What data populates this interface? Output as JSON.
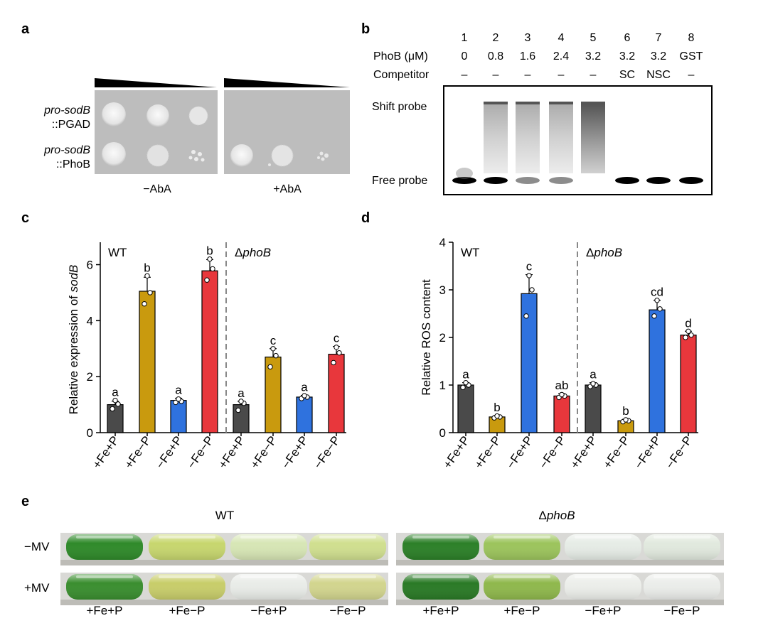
{
  "panel_labels": {
    "a": "a",
    "b": "b",
    "c": "c",
    "d": "d",
    "e": "e"
  },
  "panel_a": {
    "row_labels": [
      {
        "line1": "pro-sodB",
        "line2": "::PGAD"
      },
      {
        "line1": "pro-sodB",
        "line2": "::PhoB"
      }
    ],
    "conditions": [
      "−AbA",
      "+AbA"
    ]
  },
  "panel_b": {
    "lanes": [
      "1",
      "2",
      "3",
      "4",
      "5",
      "6",
      "7",
      "8"
    ],
    "phob_label": "PhoB (μM)",
    "phob_values": [
      "0",
      "0.8",
      "1.6",
      "2.4",
      "3.2",
      "3.2",
      "3.2",
      "GST"
    ],
    "competitor_label": "Competitor",
    "competitor_values": [
      "–",
      "–",
      "–",
      "–",
      "–",
      "SC",
      "NSC",
      "–"
    ],
    "shift_label": "Shift probe",
    "free_label": "Free probe"
  },
  "chart_data": [
    {
      "type": "bar",
      "panel": "c",
      "ylabel_prefix": "Relative expression of ",
      "ylabel_gene": "sodB",
      "ylim": [
        0,
        6.8
      ],
      "yticks": [
        "0",
        "2",
        "4",
        "6"
      ],
      "groups": [
        {
          "name": "WT",
          "prefix": "",
          "italic": ""
        },
        {
          "name": "ΔphoB",
          "prefix": "Δ",
          "italic": "phoB"
        }
      ],
      "categories": [
        "+Fe+P",
        "+Fe−P",
        "−Fe+P",
        "−Fe−P",
        "+Fe+P",
        "+Fe−P",
        "−Fe+P",
        "−Fe−P"
      ],
      "values": [
        1.0,
        5.05,
        1.15,
        5.78,
        1.0,
        2.7,
        1.27,
        2.8
      ],
      "errors": [
        0.12,
        0.5,
        0.08,
        0.4,
        0.12,
        0.3,
        0.06,
        0.28
      ],
      "points": [
        [
          0.85,
          1.02,
          1.15
        ],
        [
          4.6,
          5.0,
          5.6
        ],
        [
          1.08,
          1.12,
          1.2
        ],
        [
          5.45,
          5.85,
          6.2
        ],
        [
          0.8,
          1.05,
          1.12
        ],
        [
          2.35,
          2.75,
          3.0
        ],
        [
          1.22,
          1.27,
          1.32
        ],
        [
          2.5,
          2.85,
          3.05
        ]
      ],
      "letters": [
        "a",
        "b",
        "a",
        "b",
        "a",
        "c",
        "a",
        "c"
      ],
      "colors": [
        "#4a4a4a",
        "#c99a0e",
        "#2f72de",
        "#e8373c",
        "#4a4a4a",
        "#c99a0e",
        "#2f72de",
        "#e8373c"
      ]
    },
    {
      "type": "bar",
      "panel": "d",
      "ylabel": "Relative ROS content",
      "ylim": [
        0,
        4
      ],
      "yticks": [
        "0",
        "1",
        "2",
        "3",
        "4"
      ],
      "groups": [
        {
          "name": "WT",
          "prefix": "",
          "italic": ""
        },
        {
          "name": "ΔphoB",
          "prefix": "Δ",
          "italic": "phoB"
        }
      ],
      "categories": [
        "+Fe+P",
        "+Fe−P",
        "−Fe+P",
        "−Fe−P",
        "+Fe+P",
        "+Fe−P",
        "−Fe+P",
        "−Fe−P"
      ],
      "values": [
        1.0,
        0.33,
        2.92,
        0.77,
        1.0,
        0.25,
        2.58,
        2.05
      ],
      "errors": [
        0.05,
        0.03,
        0.4,
        0.05,
        0.05,
        0.03,
        0.2,
        0.08
      ],
      "points": [
        [
          0.95,
          1.0,
          1.05
        ],
        [
          0.31,
          0.33,
          0.35
        ],
        [
          2.45,
          3.0,
          3.3
        ],
        [
          0.74,
          0.77,
          0.8
        ],
        [
          0.97,
          1.0,
          1.03
        ],
        [
          0.23,
          0.25,
          0.27
        ],
        [
          2.45,
          2.6,
          2.78
        ],
        [
          2.0,
          2.05,
          2.13
        ]
      ],
      "letters": [
        "a",
        "b",
        "c",
        "ab",
        "a",
        "b",
        "cd",
        "d"
      ],
      "colors": [
        "#4a4a4a",
        "#c99a0e",
        "#2f72de",
        "#e8373c",
        "#4a4a4a",
        "#c99a0e",
        "#2f72de",
        "#e8373c"
      ]
    }
  ],
  "panel_e": {
    "strain_titles": [
      {
        "prefix": "",
        "italic": "",
        "text": "WT"
      },
      {
        "prefix": "Δ",
        "italic": "phoB"
      }
    ],
    "row_labels": [
      "−MV",
      "+MV"
    ],
    "conditions": [
      "+Fe+P",
      "+Fe−P",
      "−Fe+P",
      "−Fe−P",
      "+Fe+P",
      "+Fe−P",
      "−Fe+P",
      "−Fe−P"
    ],
    "culture_colors": {
      "minus_mv": [
        "#2f8a2a",
        "#c7d66e",
        "#d7e6b5",
        "#d0df8f",
        "#2c8028",
        "#9cc45c",
        "#e6ece6",
        "#e1e9de"
      ],
      "plus_mv": [
        "#3a8e2f",
        "#c8cd6a",
        "#e9ece8",
        "#d2d58e",
        "#2a7a26",
        "#8fb84c",
        "#eceeea",
        "#ebedea"
      ]
    }
  }
}
